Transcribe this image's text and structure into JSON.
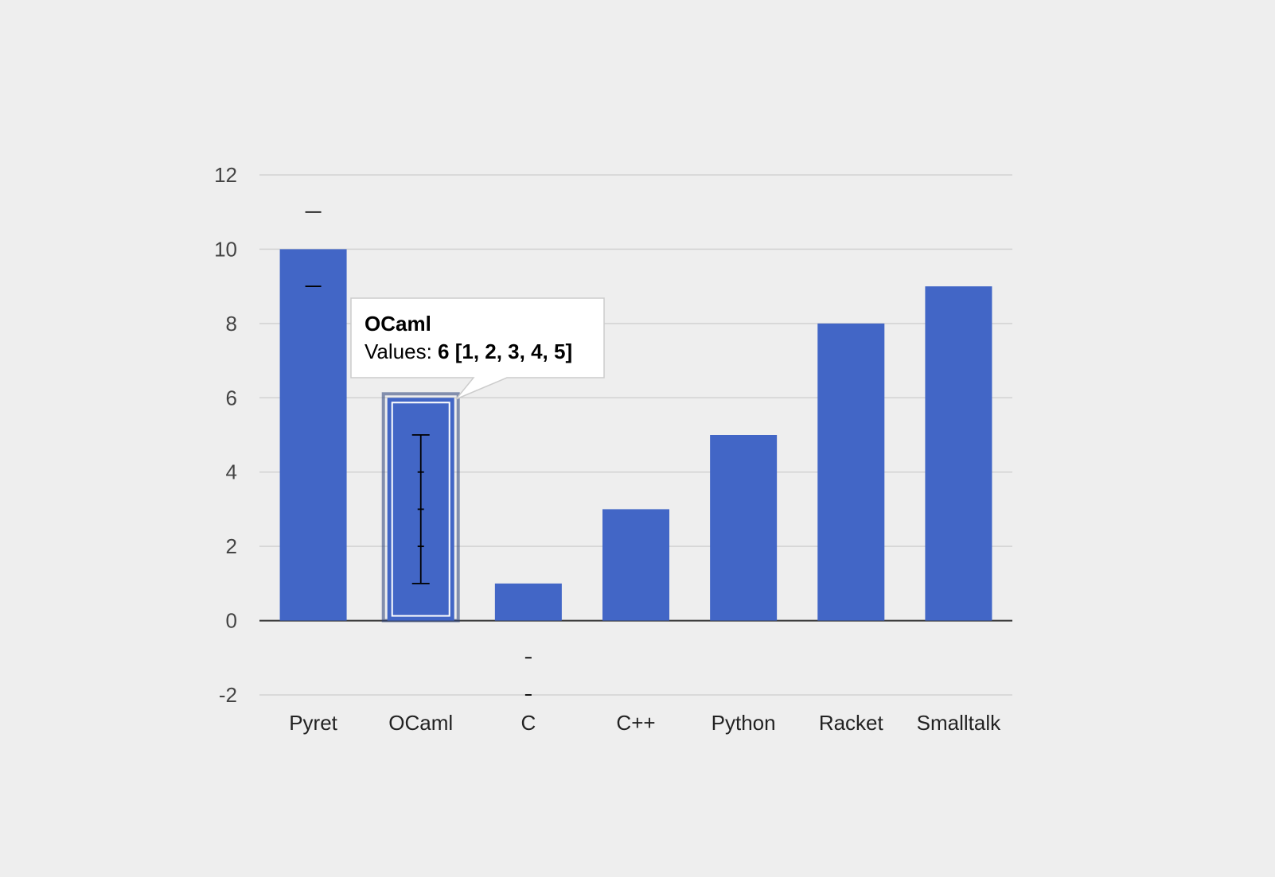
{
  "chart_data": {
    "type": "bar",
    "categories": [
      "Pyret",
      "OCaml",
      "C",
      "C++",
      "Python",
      "Racket",
      "Smalltalk"
    ],
    "values": [
      10,
      6,
      1,
      3,
      5,
      8,
      9
    ],
    "intervals": {
      "Pyret": [
        9,
        11
      ],
      "OCaml": [
        1,
        2,
        3,
        4,
        5
      ],
      "C": [
        -1,
        -2
      ]
    },
    "ylim": [
      -2,
      12
    ],
    "yticks": [
      "12",
      "10",
      "8",
      "6",
      "4",
      "2",
      "0",
      "-2"
    ],
    "title": "",
    "xlabel": "",
    "ylabel": "",
    "grid": true,
    "legend": "none",
    "highlighted_category": "OCaml",
    "colors": {
      "bar": "#4266c6",
      "background": "#eeeeee",
      "gridline": "#d2d2d2",
      "baseline": "#333333",
      "interval": "#000000"
    }
  },
  "tooltip": {
    "title": "OCaml",
    "label": "Values: ",
    "value": "6 [1, 2, 3, 4, 5]"
  }
}
